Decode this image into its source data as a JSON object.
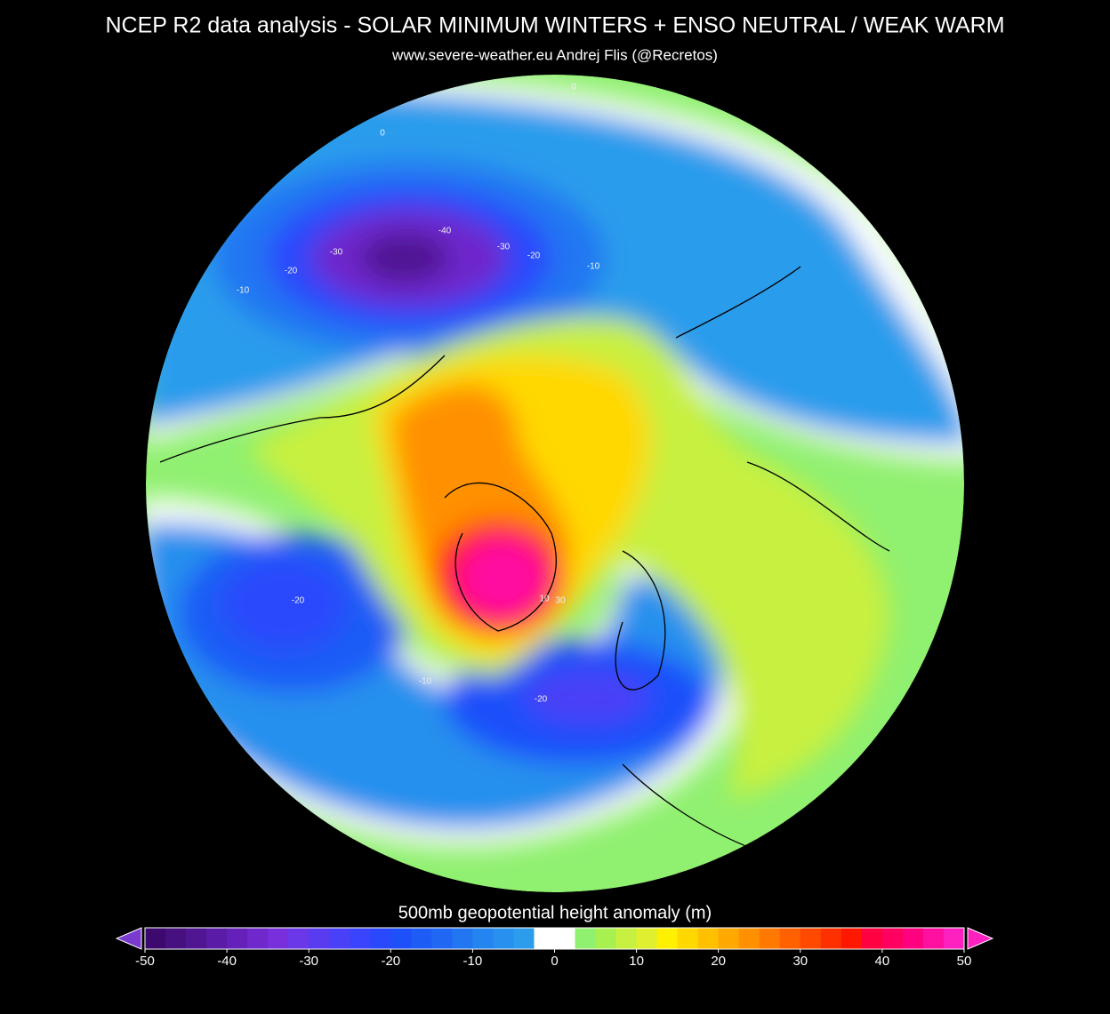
{
  "header": {
    "title": "NCEP R2 data analysis  -   SOLAR MINIMUM WINTERS +  ENSO NEUTRAL / WEAK WARM",
    "subtitle": "www.severe-weather.eu       Andrej Flis (@Recretos)"
  },
  "map": {
    "contour_labels": [
      -40,
      -30,
      -30,
      -20,
      -20,
      -10,
      -10,
      0,
      0,
      -20,
      -20,
      -10,
      10,
      30
    ]
  },
  "colorbar": {
    "label": "500mb geopotential height anomaly (m)",
    "xlim": [
      -50,
      50
    ],
    "xticks": [
      -50,
      -40,
      -30,
      -20,
      -10,
      0,
      10,
      20,
      30,
      40,
      50
    ],
    "under_color": "#7a3ad0",
    "over_color": "#ff20c0",
    "colors": [
      "#3c0a6e",
      "#46107e",
      "#501692",
      "#5a1ca6",
      "#6420b8",
      "#6e28cc",
      "#7830dc",
      "#6a38e8",
      "#5a3cf0",
      "#4a40f8",
      "#3a44fc",
      "#2a48fc",
      "#1e50fa",
      "#1e5cf6",
      "#2068f4",
      "#2276f2",
      "#2484f0",
      "#2890ee",
      "#2c9cec",
      "#ffffff",
      "#ffffff",
      "#90f070",
      "#a8f050",
      "#c8f040",
      "#e0f030",
      "#fff000",
      "#ffd800",
      "#ffc000",
      "#ffa800",
      "#ff9000",
      "#ff7800",
      "#ff6000",
      "#ff4800",
      "#ff3000",
      "#ff1800",
      "#ff0040",
      "#ff0060",
      "#ff0080",
      "#ff10a0",
      "#ff20c0"
    ]
  }
}
